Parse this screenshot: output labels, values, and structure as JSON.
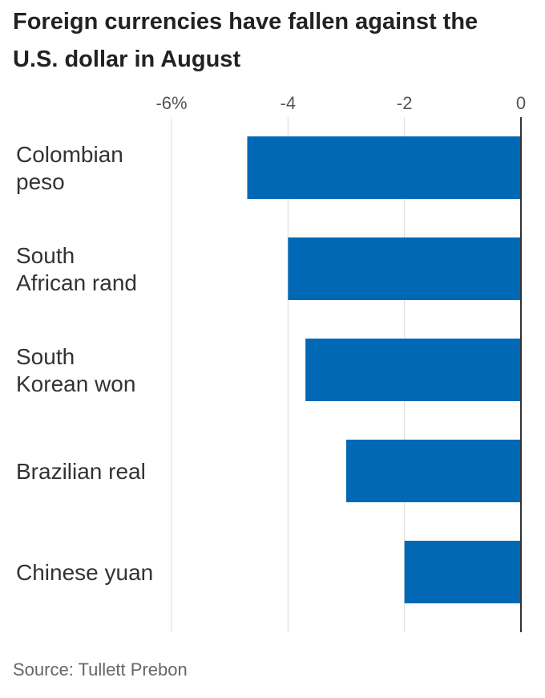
{
  "chart_data": {
    "type": "bar",
    "orientation": "horizontal",
    "title_lines": [
      "Foreign currencies have fallen against the",
      "U.S. dollar in August"
    ],
    "categories": [
      [
        "Colombian",
        "peso"
      ],
      [
        "South",
        "African rand"
      ],
      [
        "South",
        "Korean won"
      ],
      [
        "Brazilian real"
      ],
      [
        "Chinese yuan"
      ]
    ],
    "values": [
      -4.7,
      -4.0,
      -3.7,
      -3.0,
      -2.0
    ],
    "xlim": [
      -6,
      0
    ],
    "xticks": [
      {
        "value": -6,
        "label": "-6%"
      },
      {
        "value": -4,
        "label": "-4"
      },
      {
        "value": -2,
        "label": "-2"
      },
      {
        "value": 0,
        "label": "0"
      }
    ],
    "grid": true,
    "bar_color": "#0068b4",
    "source": "Source: Tullett Prebon"
  }
}
